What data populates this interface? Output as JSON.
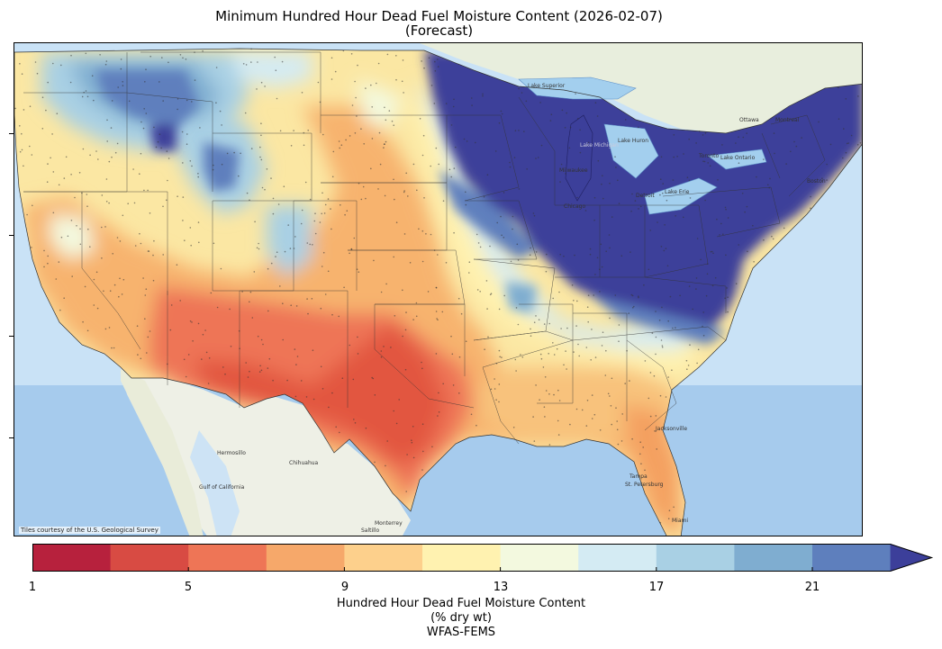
{
  "title_line1": "Minimum Hundred Hour Dead Fuel Moisture Content (2026-02-07)",
  "title_line2": "(Forecast)",
  "attribution": "Tiles courtesy of the U.S. Geological Survey",
  "colorbar": {
    "colors": [
      "#b7213d",
      "#d84b43",
      "#ee7556",
      "#f6a86a",
      "#fdd08c",
      "#fff2b0",
      "#f3f9df",
      "#d4ebf3",
      "#a9d0e4",
      "#7fadd0",
      "#5e7fbd",
      "#3c3f9a"
    ],
    "tick_labels": [
      "1",
      "5",
      "9",
      "13",
      "17",
      "21"
    ],
    "extend": "max",
    "label_lines": [
      "Hundred Hour Dead Fuel Moisture Content",
      "(% dry wt)",
      "WFAS-FEMS"
    ]
  },
  "map_labels": {
    "cities": [
      "Hermosillo",
      "Chihuahua",
      "Monterrey",
      "Saltillo",
      "Jacksonville",
      "Tampa",
      "St. Petersburg",
      "Miami",
      "Ottawa",
      "Montreal",
      "Toronto",
      "Milwaukee",
      "Chicago",
      "Detroit",
      "Boston"
    ],
    "water": [
      "Lake Superior",
      "Lake Michigan",
      "Lake Huron",
      "Lake Erie",
      "Lake Ontario",
      "Gulf of California"
    ]
  }
}
